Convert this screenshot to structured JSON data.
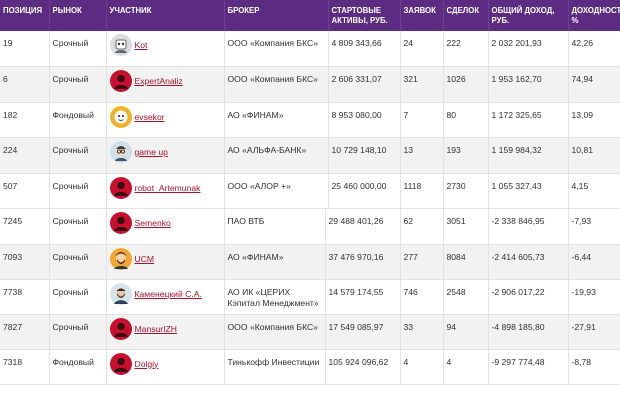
{
  "headers": {
    "position": "ПОЗИЦИЯ",
    "market": "РЫНОК",
    "participant": "УЧАСТНИК",
    "broker": "БРОКЕР",
    "start_assets": "СТАРТОВЫЕ АКТИВЫ, РУБ.",
    "orders": "ЗАЯВОК",
    "deals": "СДЕЛОК",
    "total_income": "ОБЩИЙ ДОХОД, РУБ.",
    "yield": "ДОХОДНОСТЬ, %"
  },
  "top_rows": [
    {
      "position": "19",
      "market": "Срочный",
      "nick": "Kot",
      "avatar": "robot-icon",
      "broker": "ООО «Компания БКС»",
      "start_assets": "4 809 343,66",
      "orders": "24",
      "deals": "222",
      "income": "2 032 201,93",
      "yield": "42,26"
    },
    {
      "position": "6",
      "market": "Срочный",
      "nick": "ExpertAnaliz",
      "avatar": "default-user-icon",
      "broker": "ООО «Компания БКС»",
      "start_assets": "2 606 331,07",
      "orders": "321",
      "deals": "1026",
      "income": "1 953 162,70",
      "yield": "74,94"
    },
    {
      "position": "182",
      "market": "Фондовый",
      "nick": "evsekor",
      "avatar": "cartoon-face-icon",
      "broker": "АО «ФИНАМ»",
      "start_assets": "8 953 080,00",
      "orders": "7",
      "deals": "80",
      "income": "1 172 325,65",
      "yield": "13,09"
    },
    {
      "position": "224",
      "market": "Срочный",
      "nick": "game up",
      "avatar": "glasses-face-icon",
      "broker": "АО «АЛЬФА-БАНК»",
      "start_assets": "10 729 148,10",
      "orders": "13",
      "deals": "193",
      "income": "1 159 984,32",
      "yield": "10,81"
    },
    {
      "position": "507",
      "market": "Срочный",
      "nick": "robot_Artemunak",
      "avatar": "default-user-icon",
      "broker": "ООО «АЛОР +»",
      "start_assets": "25 460 000,00",
      "orders": "1118",
      "deals": "2730",
      "income": "1 055 327,43",
      "yield": "4,15"
    }
  ],
  "bottom_rows": [
    {
      "position": "7245",
      "market": "Срочный",
      "nick": "Semenko",
      "avatar": "default-user-icon",
      "broker": "ПАО ВТБ",
      "start_assets": "29 488 401,26",
      "orders": "62",
      "deals": "3051",
      "income": "-2 338 846,95",
      "yield": "-7,93"
    },
    {
      "position": "7093",
      "market": "Срочный",
      "nick": "UCM",
      "avatar": "beard-face-icon",
      "broker": "АО «ФИНАМ»",
      "start_assets": "37 476 970,16",
      "orders": "277",
      "deals": "8084",
      "income": "-2 414 605,73",
      "yield": "-6,44"
    },
    {
      "position": "7738",
      "market": "Срочный",
      "nick": "Каменецкий С.А.",
      "avatar": "bearded-man-icon",
      "broker": "АО ИК «ЦЕРИХ Кэпитал Менеджмент»",
      "start_assets": "14 579 174,55",
      "orders": "746",
      "deals": "2548",
      "income": "-2 906 017,22",
      "yield": "-19,93"
    },
    {
      "position": "7827",
      "market": "Срочный",
      "nick": "MansurIZH",
      "avatar": "default-user-icon",
      "broker": "ООО «Компания БКС»",
      "start_assets": "17 549 085,97",
      "orders": "33",
      "deals": "94",
      "income": "-4 898 185,80",
      "yield": "-27,91"
    },
    {
      "position": "7318",
      "market": "Фондовый",
      "nick": "Dolgiy",
      "avatar": "default-user-icon",
      "broker": "Тинькофф Инвестиции",
      "start_assets": "105 924 096,62",
      "orders": "4",
      "deals": "4",
      "income": "-9 297 774,48",
      "yield": "-8,78"
    }
  ],
  "colors": {
    "header_bg": "#5b2c82",
    "link": "#b0102a",
    "default_avatar": "#c8102e"
  }
}
